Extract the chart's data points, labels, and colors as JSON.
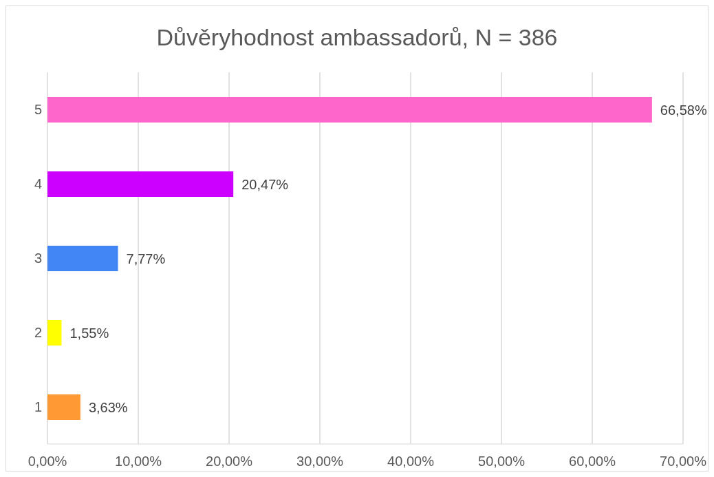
{
  "chart_data": {
    "type": "bar",
    "orientation": "horizontal",
    "title": "Důvěryhodnost ambassadorů, N = 386",
    "categories": [
      "5",
      "4",
      "3",
      "2",
      "1"
    ],
    "values": [
      66.58,
      20.47,
      7.77,
      1.55,
      3.63
    ],
    "colors": [
      "#ff66cc",
      "#cc00ff",
      "#4285f4",
      "#ffff00",
      "#ff9933"
    ],
    "value_labels": [
      "66,58%",
      "20,47%",
      "7,77%",
      "1,55%",
      "3,63%"
    ],
    "xlim": [
      0,
      70
    ],
    "xticks": [
      {
        "value": 0,
        "label": "0,00%"
      },
      {
        "value": 10,
        "label": "10,00%"
      },
      {
        "value": 20,
        "label": "20,00%"
      },
      {
        "value": 30,
        "label": "30,00%"
      },
      {
        "value": 40,
        "label": "40,00%"
      },
      {
        "value": 50,
        "label": "50,00%"
      },
      {
        "value": 60,
        "label": "60,00%"
      },
      {
        "value": 70,
        "label": "70,00%"
      }
    ],
    "grid": "x",
    "legend": false
  }
}
